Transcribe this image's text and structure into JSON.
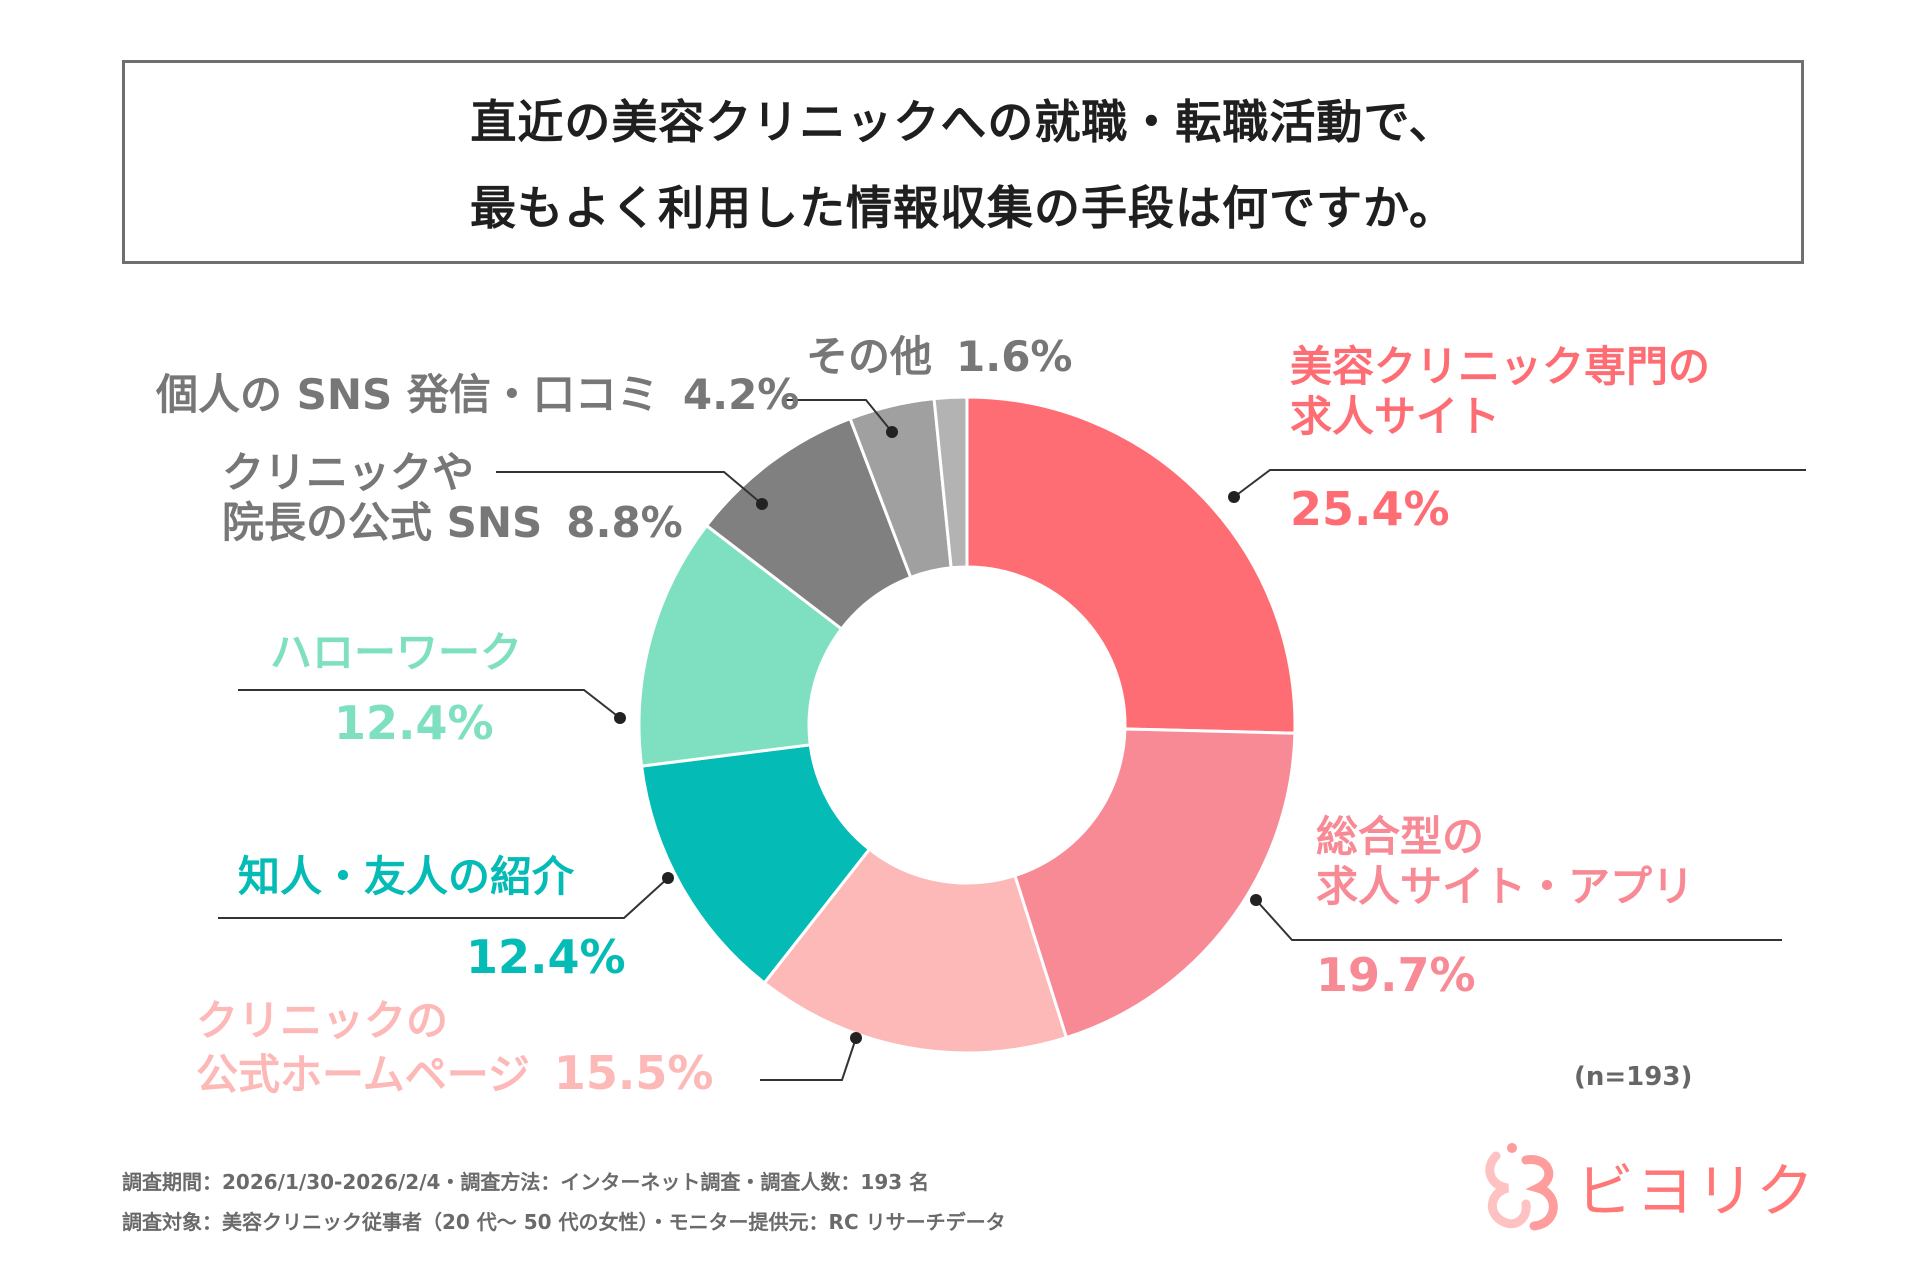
{
  "chart_data": {
    "type": "pie",
    "variant": "donut",
    "title": [
      "直近の美容クリニックへの就職・転職活動で、",
      "最もよく利用した情報収集の手段は何ですか。"
    ],
    "sample_note": "(n=193)",
    "slices": [
      {
        "label_lines": [
          "美容クリニック専門の",
          "求人サイト"
        ],
        "value": 25.4,
        "value_label": "25.4%",
        "color": "#ff6d74"
      },
      {
        "label_lines": [
          "総合型の",
          "求人サイト・アプリ"
        ],
        "value": 19.7,
        "value_label": "19.7%",
        "color": "#f88a95"
      },
      {
        "label_lines": [
          "クリニックの",
          "公式ホームページ"
        ],
        "value": 15.5,
        "value_label": "15.5%",
        "color": "#fdb8b8"
      },
      {
        "label_lines": [
          "知人・友人の紹介"
        ],
        "value": 12.4,
        "value_label": "12.4%",
        "color": "#05bbb6"
      },
      {
        "label_lines": [
          "ハローワーク"
        ],
        "value": 12.4,
        "value_label": "12.4%",
        "color": "#7ee0c1"
      },
      {
        "label_lines": [
          "クリニックや",
          "院長の公式 SNS"
        ],
        "value": 8.8,
        "value_label": "8.8%",
        "color": "#808080"
      },
      {
        "label_lines": [
          "個人の SNS 発信・口コミ"
        ],
        "value": 4.2,
        "value_label": "4.2%",
        "color": "#a0a0a0"
      },
      {
        "label_lines": [
          "その他"
        ],
        "value": 1.6,
        "value_label": "1.6%",
        "color": "#b3b3b3"
      }
    ],
    "label_colors": [
      "#ff6d74",
      "#f88a95",
      "#fdb8b8",
      "#05bbb6",
      "#7ee0c1",
      "#777777",
      "#777777",
      "#777777"
    ]
  },
  "footer": {
    "line1": "調査期間：2026/1/30-2026/2/4・調査方法：インターネット調査・調査人数：193 名",
    "line2": "調査対象：美容クリニック従事者（20 代～ 50 代の女性）・モニター提供元：RC リサーチデータ"
  },
  "logo": {
    "text": "ビヨリク",
    "color": "#ff7777"
  }
}
